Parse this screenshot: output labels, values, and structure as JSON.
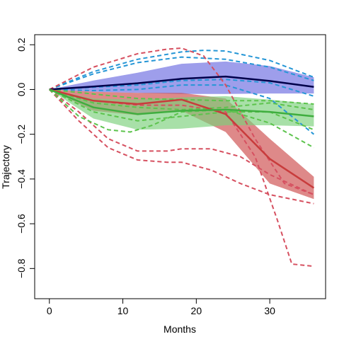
{
  "chart_data": {
    "type": "line",
    "title": "",
    "xlabel": "Months",
    "ylabel": "Trajectory",
    "xlim": [
      -2,
      37.6
    ],
    "ylim": [
      -0.935,
      0.245
    ],
    "x_ticks": [
      0,
      10,
      20,
      30
    ],
    "y_ticks": [
      0.2,
      0.0,
      -0.2,
      -0.4,
      -0.6,
      -0.8
    ],
    "y_tick_labels": [
      "0.2",
      "0.0",
      "−0.2",
      "−0.4",
      "−0.6",
      "−0.8"
    ],
    "grid": false,
    "legend": "none",
    "series": [
      {
        "color": "#00004b",
        "band_color": "#6a6ae0",
        "x": [
          0,
          6,
          12,
          18,
          24,
          30,
          36
        ],
        "mean": [
          0,
          0.013,
          0.028,
          0.048,
          0.058,
          0.038,
          0.012
        ],
        "band_upper": [
          0,
          0.04,
          0.075,
          0.115,
          0.125,
          0.105,
          0.055
        ],
        "band_lower": [
          0,
          -0.01,
          -0.015,
          -0.02,
          -0.02,
          -0.018,
          -0.018
        ],
        "dashed_color": "#2596d6",
        "dashed_lines": [
          [
            [
              0,
              0
            ],
            [
              6,
              0.08
            ],
            [
              12,
              0.135
            ],
            [
              18,
              0.168
            ],
            [
              21,
              0.175
            ],
            [
              24,
              0.172
            ],
            [
              30,
              0.13
            ],
            [
              36,
              0.055
            ]
          ],
          [
            [
              0,
              0
            ],
            [
              6,
              0.07
            ],
            [
              12,
              0.12
            ],
            [
              18,
              0.145
            ],
            [
              24,
              0.135
            ],
            [
              30,
              0.1
            ],
            [
              36,
              0.04
            ]
          ],
          [
            [
              0,
              0
            ],
            [
              6,
              0.01
            ],
            [
              12,
              0.02
            ],
            [
              18,
              0.04
            ],
            [
              24,
              0.045
            ],
            [
              30,
              0.03
            ],
            [
              36,
              -0.03
            ]
          ],
          [
            [
              0,
              0
            ],
            [
              6,
              -0.005
            ],
            [
              12,
              0.0
            ],
            [
              18,
              0.02
            ],
            [
              24,
              0.02
            ],
            [
              30,
              -0.04
            ],
            [
              36,
              -0.2
            ]
          ]
        ]
      },
      {
        "color": "#c83c3c",
        "band_color": "#cd4a4a",
        "x": [
          0,
          6,
          12,
          18,
          24,
          30,
          36
        ],
        "mean": [
          0,
          -0.05,
          -0.065,
          -0.045,
          -0.11,
          -0.31,
          -0.44
        ],
        "band_upper": [
          0,
          -0.01,
          -0.015,
          -0.015,
          -0.04,
          -0.22,
          -0.39
        ],
        "band_lower": [
          0,
          -0.095,
          -0.115,
          -0.095,
          -0.19,
          -0.42,
          -0.49
        ],
        "dashed_color": "#d65060",
        "dashed_lines": [
          [
            [
              0,
              0
            ],
            [
              6,
              0.1
            ],
            [
              12,
              0.16
            ],
            [
              16,
              0.18
            ],
            [
              18,
              0.185
            ],
            [
              21,
              0.15
            ],
            [
              24,
              0.02
            ],
            [
              28,
              -0.22
            ],
            [
              32,
              -0.42
            ],
            [
              36,
              -0.47
            ]
          ],
          [
            [
              0,
              0
            ],
            [
              4,
              -0.1
            ],
            [
              8,
              -0.22
            ],
            [
              12,
              -0.275
            ],
            [
              16,
              -0.275
            ],
            [
              18,
              -0.265
            ],
            [
              22,
              -0.265
            ],
            [
              26,
              -0.3
            ],
            [
              30,
              -0.38
            ],
            [
              36,
              -0.47
            ]
          ],
          [
            [
              0,
              0
            ],
            [
              4,
              -0.14
            ],
            [
              8,
              -0.26
            ],
            [
              12,
              -0.315
            ],
            [
              16,
              -0.325
            ],
            [
              18,
              -0.325
            ],
            [
              22,
              -0.36
            ],
            [
              26,
              -0.42
            ],
            [
              30,
              -0.47
            ],
            [
              36,
              -0.51
            ]
          ],
          [
            [
              0,
              0
            ],
            [
              6,
              -0.05
            ],
            [
              12,
              -0.07
            ],
            [
              18,
              -0.07
            ],
            [
              24,
              -0.1
            ],
            [
              28,
              -0.3
            ],
            [
              31,
              -0.58
            ],
            [
              33,
              -0.78
            ],
            [
              36,
              -0.79
            ]
          ]
        ]
      },
      {
        "color": "#3fae3f",
        "band_color": "#7ad07a",
        "x": [
          0,
          6,
          12,
          18,
          24,
          30,
          36
        ],
        "mean": [
          0,
          -0.08,
          -0.11,
          -0.095,
          -0.09,
          -0.1,
          -0.12
        ],
        "band_upper": [
          0,
          -0.04,
          -0.045,
          -0.035,
          -0.03,
          -0.045,
          -0.065
        ],
        "band_lower": [
          0,
          -0.13,
          -0.18,
          -0.175,
          -0.16,
          -0.16,
          -0.165
        ],
        "dashed_color": "#5cc34c",
        "dashed_lines": [
          [
            [
              0,
              0
            ],
            [
              6,
              -0.02
            ],
            [
              12,
              -0.04
            ],
            [
              18,
              -0.045
            ],
            [
              24,
              -0.05
            ],
            [
              30,
              -0.05
            ],
            [
              36,
              -0.065
            ]
          ],
          [
            [
              0,
              0
            ],
            [
              6,
              -0.06
            ],
            [
              12,
              -0.08
            ],
            [
              18,
              -0.09
            ],
            [
              24,
              -0.08
            ],
            [
              30,
              -0.06
            ],
            [
              36,
              -0.09
            ]
          ],
          [
            [
              0,
              0
            ],
            [
              6,
              -0.1
            ],
            [
              12,
              -0.14
            ],
            [
              18,
              -0.12
            ],
            [
              24,
              -0.1
            ],
            [
              30,
              -0.1
            ],
            [
              36,
              -0.18
            ]
          ],
          [
            [
              0,
              0
            ],
            [
              4,
              -0.12
            ],
            [
              8,
              -0.18
            ],
            [
              11,
              -0.19
            ],
            [
              14,
              -0.16
            ],
            [
              18,
              -0.1
            ],
            [
              24,
              -0.09
            ],
            [
              30,
              -0.15
            ],
            [
              36,
              -0.26
            ]
          ]
        ]
      }
    ]
  }
}
